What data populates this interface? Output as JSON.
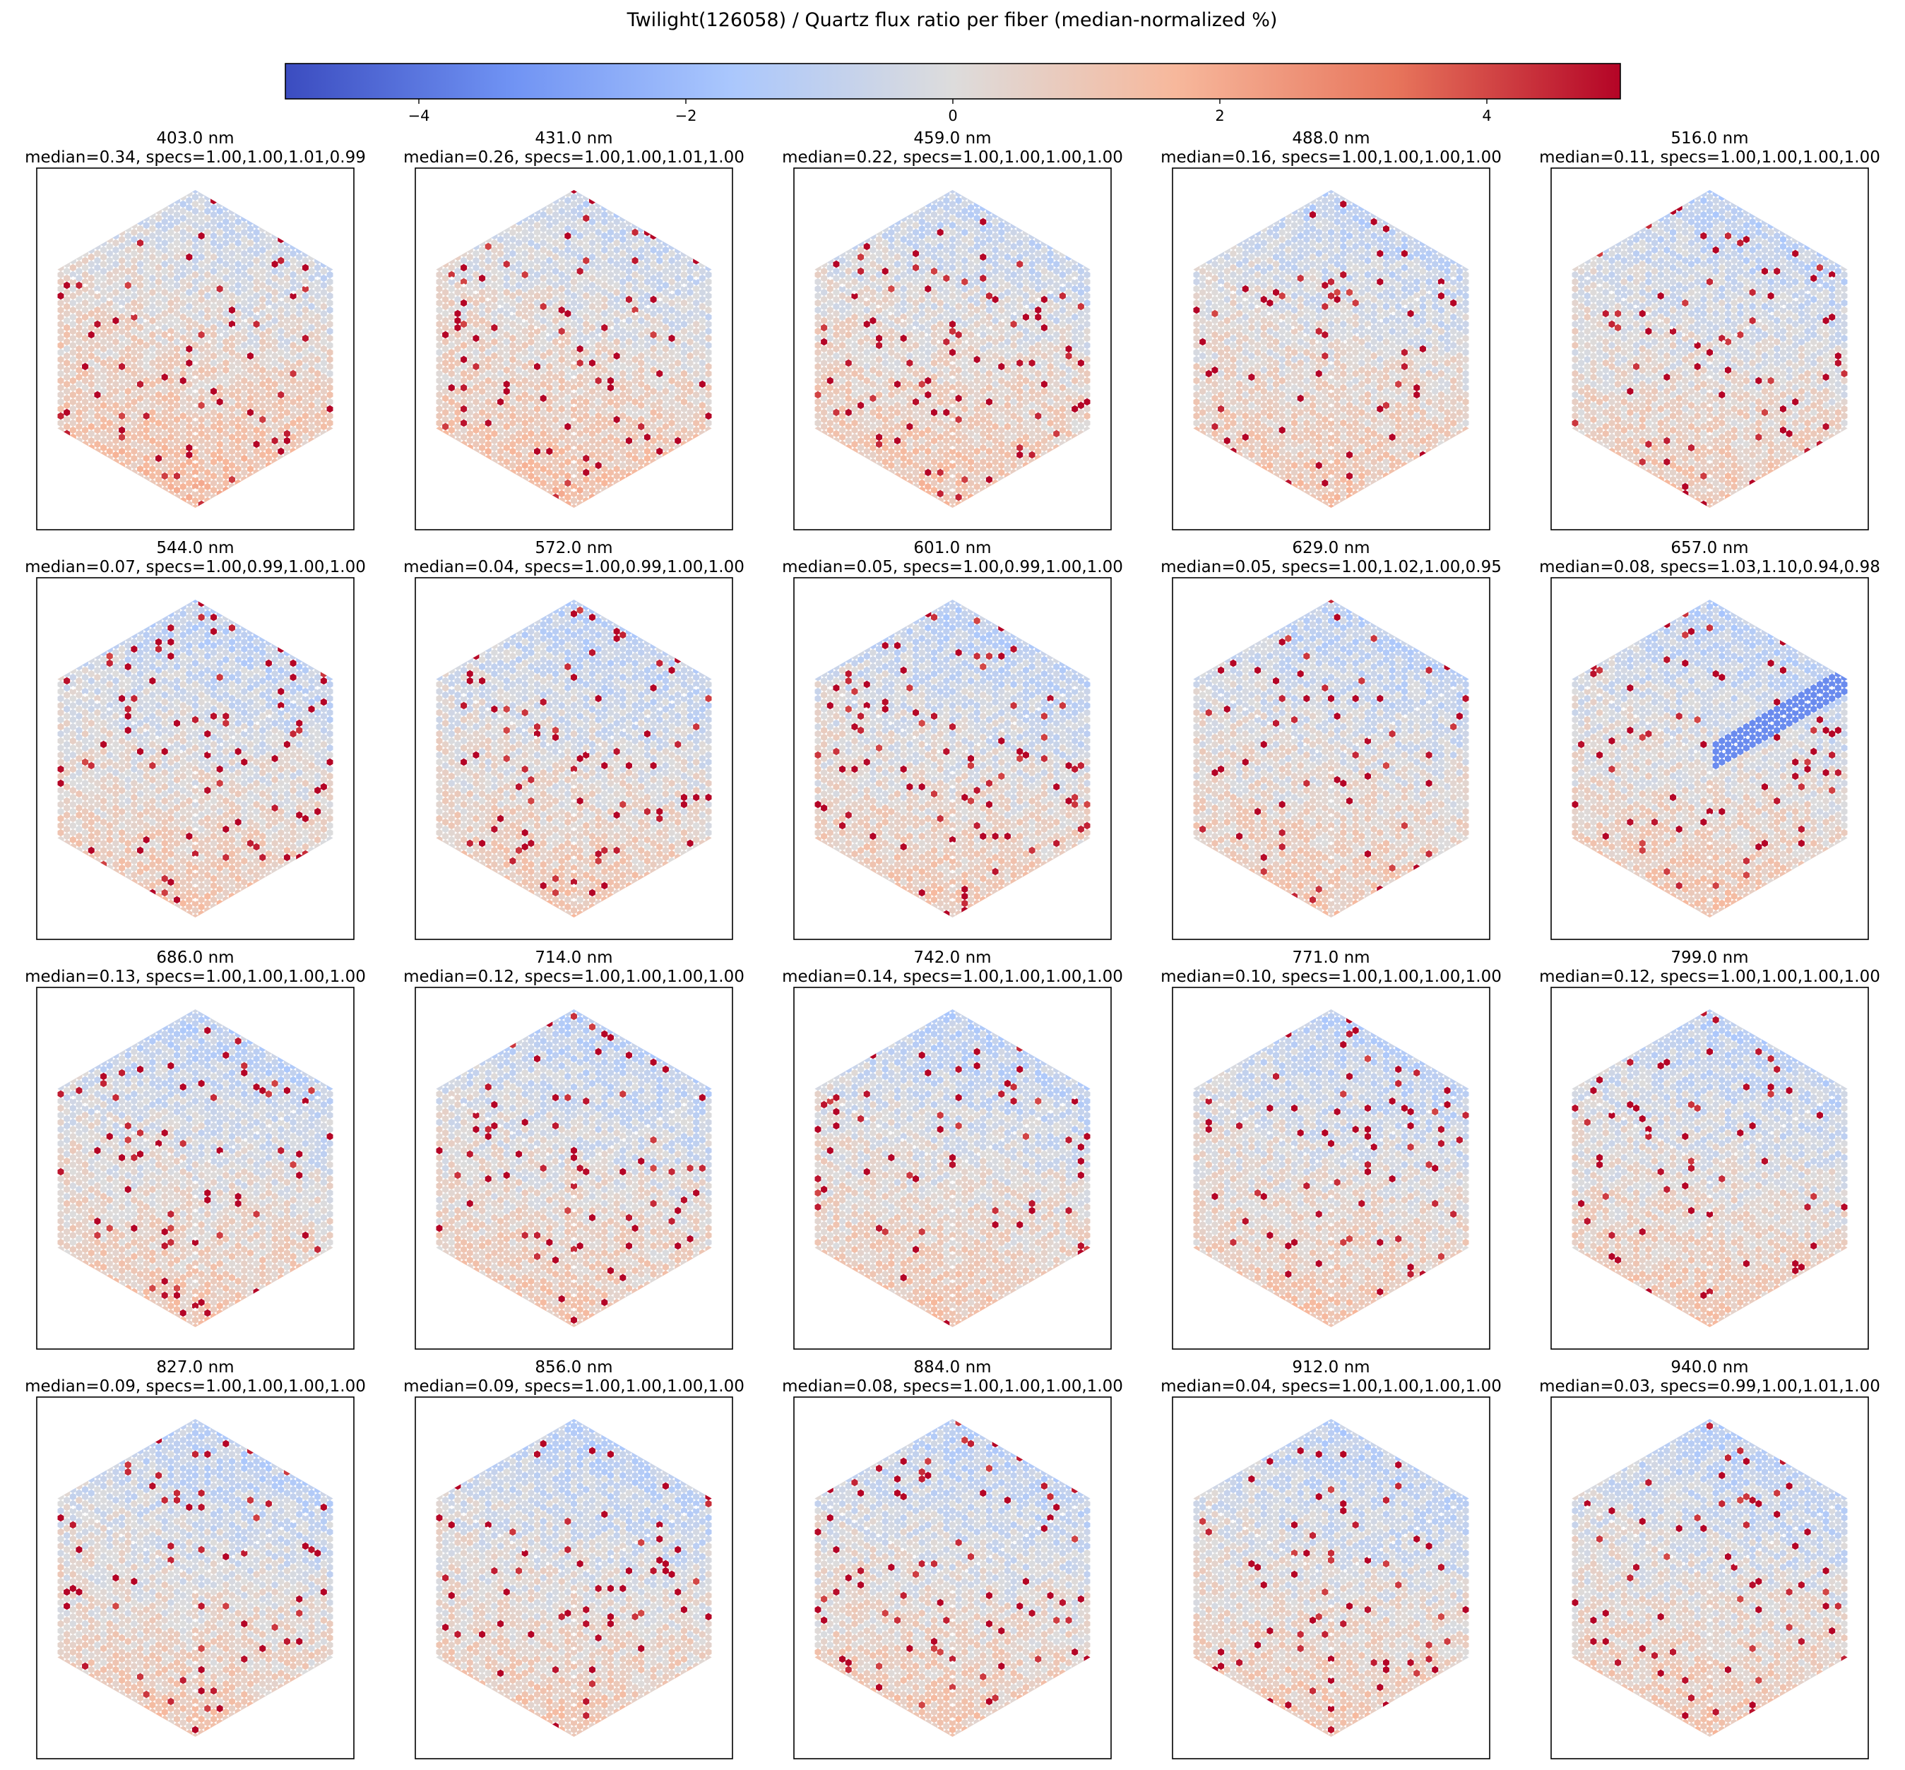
{
  "chart_data": {
    "type": "heatmap",
    "title": "Twilight(126058) / Quartz flux ratio per fiber (median-normalized %)",
    "colormap": "coolwarm",
    "colorbar": {
      "range": [
        -5,
        5
      ],
      "ticks": [
        -4,
        -2,
        0,
        2,
        4
      ],
      "tick_labels": [
        "−4",
        "−2",
        "0",
        "2",
        "4"
      ],
      "colors": [
        "#3b4cc0",
        "#6f92f3",
        "#aac7fd",
        "#dddcdc",
        "#f7b89c",
        "#e7745b",
        "#b40426"
      ]
    },
    "panels": [
      {
        "wavelength": "403.0 nm",
        "median": "0.34",
        "specs": "1.00,1.00,1.01,0.99"
      },
      {
        "wavelength": "431.0 nm",
        "median": "0.26",
        "specs": "1.00,1.00,1.01,1.00"
      },
      {
        "wavelength": "459.0 nm",
        "median": "0.22",
        "specs": "1.00,1.00,1.00,1.00"
      },
      {
        "wavelength": "488.0 nm",
        "median": "0.16",
        "specs": "1.00,1.00,1.00,1.00"
      },
      {
        "wavelength": "516.0 nm",
        "median": "0.11",
        "specs": "1.00,1.00,1.00,1.00"
      },
      {
        "wavelength": "544.0 nm",
        "median": "0.07",
        "specs": "1.00,0.99,1.00,1.00"
      },
      {
        "wavelength": "572.0 nm",
        "median": "0.04",
        "specs": "1.00,0.99,1.00,1.00"
      },
      {
        "wavelength": "601.0 nm",
        "median": "0.05",
        "specs": "1.00,0.99,1.00,1.00"
      },
      {
        "wavelength": "629.0 nm",
        "median": "0.05",
        "specs": "1.00,1.02,1.00,0.95"
      },
      {
        "wavelength": "657.0 nm",
        "median": "0.08",
        "specs": "1.03,1.10,0.94,0.98"
      },
      {
        "wavelength": "686.0 nm",
        "median": "0.13",
        "specs": "1.00,1.00,1.00,1.00"
      },
      {
        "wavelength": "714.0 nm",
        "median": "0.12",
        "specs": "1.00,1.00,1.00,1.00"
      },
      {
        "wavelength": "742.0 nm",
        "median": "0.14",
        "specs": "1.00,1.00,1.00,1.00"
      },
      {
        "wavelength": "771.0 nm",
        "median": "0.10",
        "specs": "1.00,1.00,1.00,1.00"
      },
      {
        "wavelength": "799.0 nm",
        "median": "0.12",
        "specs": "1.00,1.00,1.00,1.00"
      },
      {
        "wavelength": "827.0 nm",
        "median": "0.09",
        "specs": "1.00,1.00,1.00,1.00"
      },
      {
        "wavelength": "856.0 nm",
        "median": "0.09",
        "specs": "1.00,1.00,1.00,1.00"
      },
      {
        "wavelength": "884.0 nm",
        "median": "0.08",
        "specs": "1.00,1.00,1.00,1.00"
      },
      {
        "wavelength": "912.0 nm",
        "median": "0.04",
        "specs": "1.00,1.00,1.00,1.00"
      },
      {
        "wavelength": "940.0 nm",
        "median": "0.03",
        "specs": "0.99,1.00,1.01,1.00"
      }
    ]
  }
}
